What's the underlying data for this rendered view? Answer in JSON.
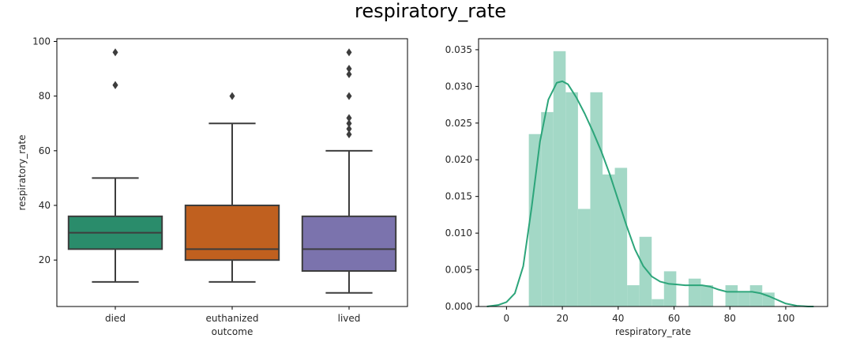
{
  "suptitle": "respiratory_rate",
  "chart_data": [
    {
      "type": "box",
      "xlabel": "outcome",
      "ylabel": "respiratory_rate",
      "ylim": [
        3,
        101
      ],
      "yticks": [
        20,
        40,
        60,
        80,
        100
      ],
      "categories": [
        "died",
        "euthanized",
        "lived"
      ],
      "colors": [
        "#2a8c6b",
        "#c0601f",
        "#7b73ad"
      ],
      "boxes": [
        {
          "category": "died",
          "whisker_low": 12,
          "q1": 24,
          "median": 30,
          "q3": 36,
          "whisker_high": 50,
          "outliers": [
            84,
            84,
            96
          ]
        },
        {
          "category": "euthanized",
          "whisker_low": 12,
          "q1": 20,
          "median": 24,
          "q3": 40,
          "whisker_high": 70,
          "outliers": [
            80
          ]
        },
        {
          "category": "lived",
          "whisker_low": 8,
          "q1": 16,
          "median": 24,
          "q3": 36,
          "whisker_high": 60,
          "outliers": [
            66,
            68,
            70,
            72,
            80,
            88,
            90,
            96
          ]
        }
      ],
      "grid": false
    },
    {
      "type": "histogram",
      "xlabel": "respiratory_rate",
      "ylabel": "",
      "xlim": [
        -10,
        115
      ],
      "ylim": [
        0,
        0.0365
      ],
      "xticks": [
        0,
        20,
        40,
        60,
        80,
        100
      ],
      "yticks": [
        0.0,
        0.005,
        0.01,
        0.015,
        0.02,
        0.025,
        0.03,
        0.035
      ],
      "bar_color": "#a3d8c6",
      "kde_color": "#2ca57a",
      "bins": [
        {
          "x0": 8,
          "x1": 12.4,
          "value": 0.0235
        },
        {
          "x0": 12.4,
          "x1": 16.8,
          "value": 0.0265
        },
        {
          "x0": 16.8,
          "x1": 21.2,
          "value": 0.0348
        },
        {
          "x0": 21.2,
          "x1": 25.6,
          "value": 0.0292
        },
        {
          "x0": 25.6,
          "x1": 30.0,
          "value": 0.0133
        },
        {
          "x0": 30.0,
          "x1": 34.4,
          "value": 0.0292
        },
        {
          "x0": 34.4,
          "x1": 38.8,
          "value": 0.018
        },
        {
          "x0": 38.8,
          "x1": 43.2,
          "value": 0.0189
        },
        {
          "x0": 43.2,
          "x1": 47.6,
          "value": 0.0029
        },
        {
          "x0": 47.6,
          "x1": 52.0,
          "value": 0.0095
        },
        {
          "x0": 52.0,
          "x1": 56.4,
          "value": 0.001
        },
        {
          "x0": 56.4,
          "x1": 60.8,
          "value": 0.0048
        },
        {
          "x0": 60.8,
          "x1": 65.2,
          "value": 0.0
        },
        {
          "x0": 65.2,
          "x1": 69.6,
          "value": 0.0038
        },
        {
          "x0": 69.6,
          "x1": 74.0,
          "value": 0.0029
        },
        {
          "x0": 74.0,
          "x1": 78.4,
          "value": 0.0
        },
        {
          "x0": 78.4,
          "x1": 82.8,
          "value": 0.0029
        },
        {
          "x0": 82.8,
          "x1": 87.2,
          "value": 0.0019
        },
        {
          "x0": 87.2,
          "x1": 91.6,
          "value": 0.0029
        },
        {
          "x0": 91.6,
          "x1": 96.0,
          "value": 0.0019
        }
      ],
      "kde": {
        "x": [
          -7,
          -3,
          0,
          3,
          6,
          9,
          12,
          15,
          18,
          20,
          22,
          25,
          28,
          31,
          34,
          37,
          40,
          43,
          46,
          49,
          52,
          55,
          58,
          61,
          64,
          67,
          70,
          73,
          76,
          79,
          82,
          85,
          88,
          91,
          94,
          97,
          100,
          104,
          108,
          110
        ],
        "y": [
          0.0,
          0.0002,
          0.0006,
          0.0018,
          0.0055,
          0.0135,
          0.0225,
          0.0282,
          0.0305,
          0.0307,
          0.0303,
          0.0285,
          0.0263,
          0.0238,
          0.0211,
          0.018,
          0.0145,
          0.011,
          0.0078,
          0.0055,
          0.0041,
          0.0034,
          0.0031,
          0.003,
          0.0029,
          0.0029,
          0.0029,
          0.0027,
          0.0023,
          0.002,
          0.002,
          0.002,
          0.002,
          0.0018,
          0.0014,
          0.0009,
          0.0004,
          0.0001,
          0.0,
          0.0
        ]
      },
      "grid": false
    }
  ]
}
